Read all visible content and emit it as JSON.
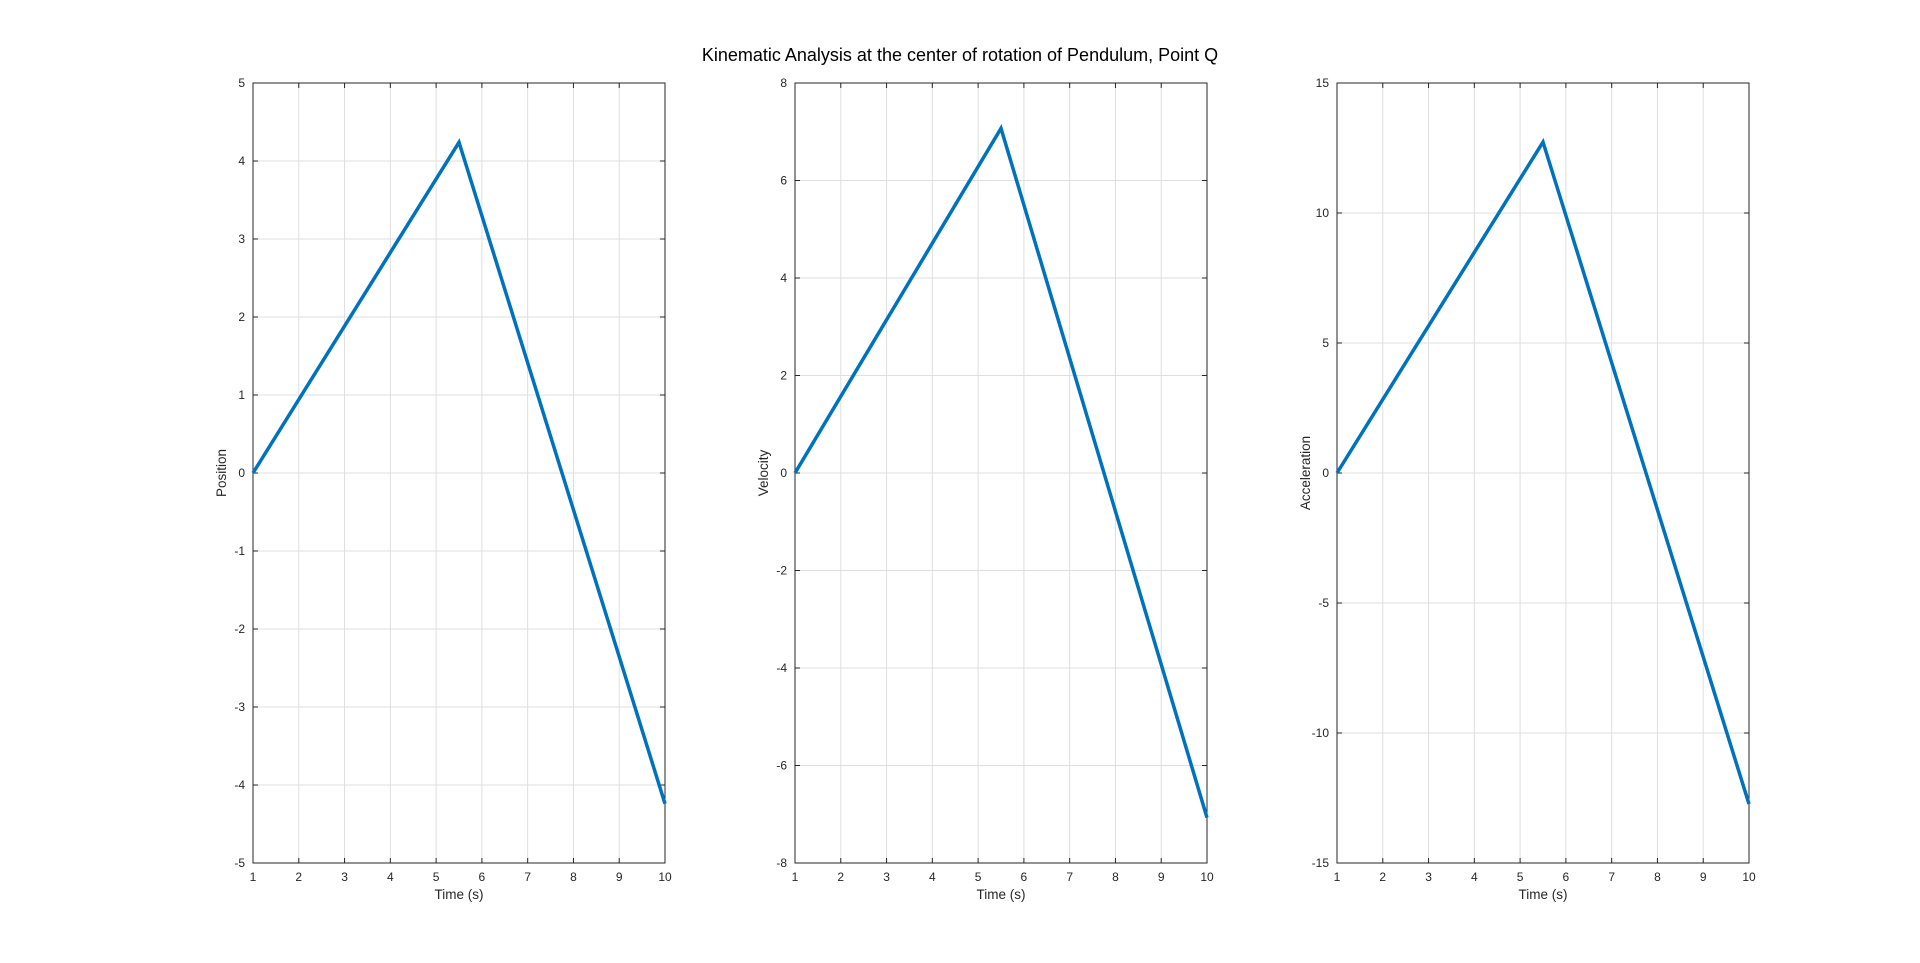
{
  "figure": {
    "title": "Kinematic Analysis at the center of rotation of Pendulum, Point Q",
    "line_color": "#0072BD",
    "grid_color": "#DFDFDF",
    "axes_color": "#262626"
  },
  "chart_data": [
    {
      "type": "line",
      "xlabel": "Time (s)",
      "ylabel": "Position",
      "xlim": [
        1,
        10
      ],
      "ylim": [
        -5,
        5
      ],
      "xticks": [
        1,
        2,
        3,
        4,
        5,
        6,
        7,
        8,
        9,
        10
      ],
      "yticks": [
        -5,
        -4,
        -3,
        -2,
        -1,
        0,
        1,
        2,
        3,
        4,
        5
      ],
      "grid": true,
      "series": [
        {
          "x": [
            1,
            5.5,
            10
          ],
          "y": [
            0,
            4.24,
            -4.24
          ]
        }
      ]
    },
    {
      "type": "line",
      "xlabel": "Time (s)",
      "ylabel": "Velocity",
      "xlim": [
        1,
        10
      ],
      "ylim": [
        -8,
        8
      ],
      "xticks": [
        1,
        2,
        3,
        4,
        5,
        6,
        7,
        8,
        9,
        10
      ],
      "yticks": [
        -8,
        -6,
        -4,
        -2,
        0,
        2,
        4,
        6,
        8
      ],
      "grid": true,
      "series": [
        {
          "x": [
            1,
            5.5,
            10
          ],
          "y": [
            0,
            7.07,
            -7.07
          ]
        }
      ]
    },
    {
      "type": "line",
      "xlabel": "Time (s)",
      "ylabel": "Acceleration",
      "xlim": [
        1,
        10
      ],
      "ylim": [
        -15,
        15
      ],
      "xticks": [
        1,
        2,
        3,
        4,
        5,
        6,
        7,
        8,
        9,
        10
      ],
      "yticks": [
        -15,
        -10,
        -5,
        0,
        5,
        10,
        15
      ],
      "grid": true,
      "series": [
        {
          "x": [
            1,
            5.5,
            10
          ],
          "y": [
            0,
            12.73,
            -12.73
          ]
        }
      ]
    }
  ]
}
